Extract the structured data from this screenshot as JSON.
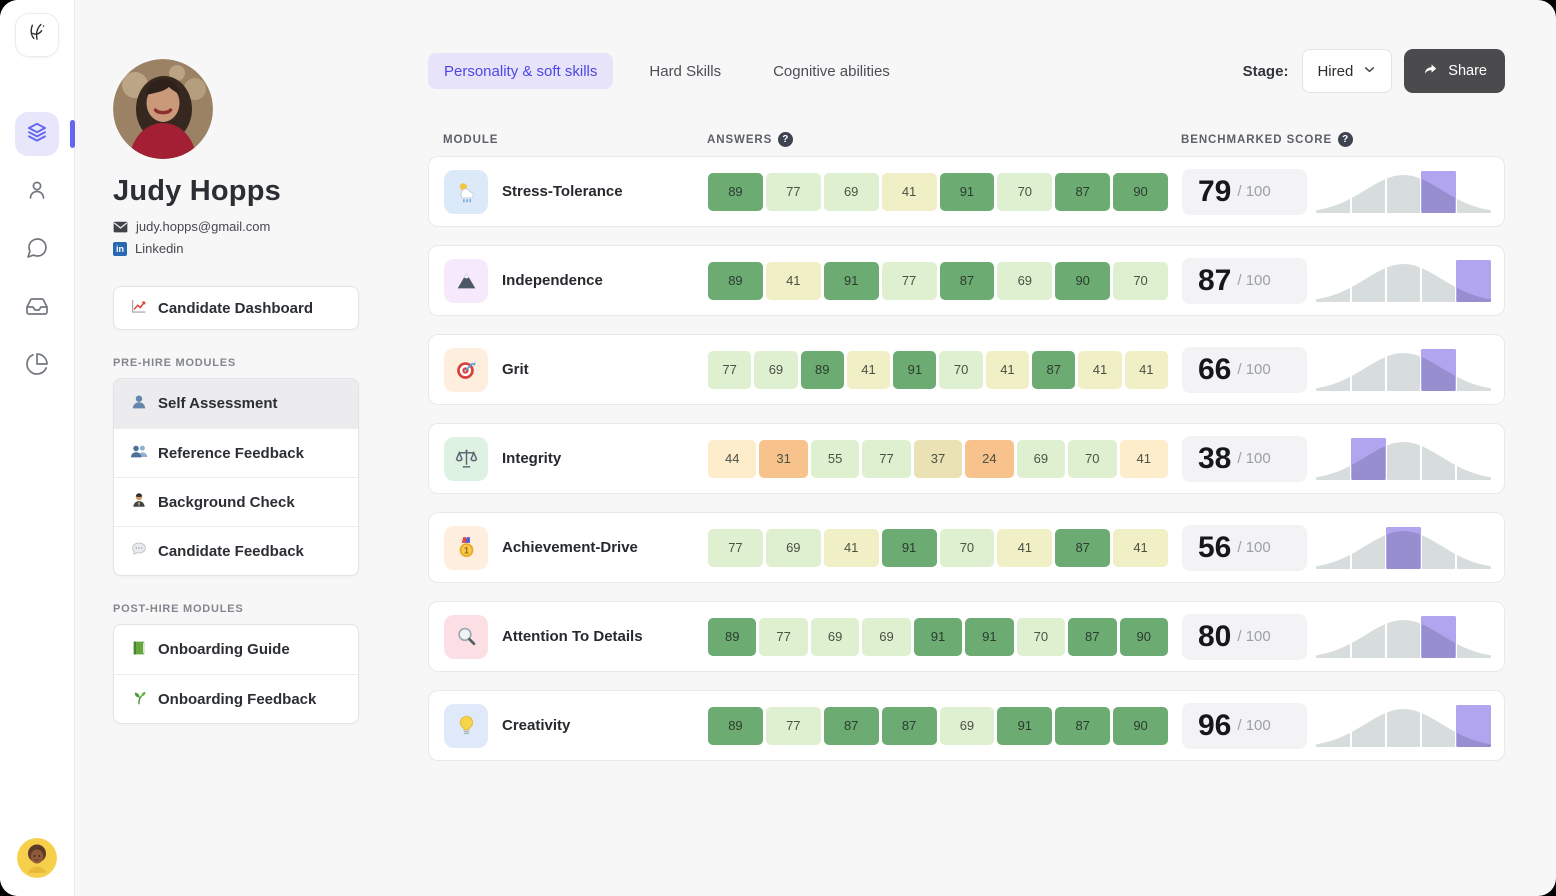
{
  "rail": {
    "items": [
      {
        "icon": "layers",
        "name": "modules",
        "active": true
      },
      {
        "icon": "user",
        "name": "candidates",
        "active": false
      },
      {
        "icon": "chat",
        "name": "messages",
        "active": false
      },
      {
        "icon": "inbox",
        "name": "inbox",
        "active": false
      },
      {
        "icon": "pie",
        "name": "reports",
        "active": false
      }
    ]
  },
  "profile": {
    "name": "Judy Hopps",
    "email": "judy.hopps@gmail.com",
    "linkedin_label": "Linkedin"
  },
  "nav": {
    "dashboard_label": "Candidate Dashboard",
    "dashboard_icon": "chart",
    "pre_hire_title": "PRE-HIRE MODULES",
    "pre_hire_items": [
      {
        "icon": "bust",
        "label": "Self Assessment",
        "active": true
      },
      {
        "icon": "busts",
        "label": "Reference Feedback",
        "active": false
      },
      {
        "icon": "worker",
        "label": "Background Check",
        "active": false
      },
      {
        "icon": "balloon",
        "label": "Candidate Feedback",
        "active": false
      }
    ],
    "post_hire_title": "POST-HIRE MODULES",
    "post_hire_items": [
      {
        "icon": "book",
        "label": "Onboarding Guide",
        "active": false
      },
      {
        "icon": "seedling",
        "label": "Onboarding Feedback",
        "active": false
      }
    ]
  },
  "header": {
    "tabs": [
      {
        "label": "Personality & soft skills",
        "active": true
      },
      {
        "label": "Hard Skills",
        "active": false
      },
      {
        "label": "Cognitive abilities",
        "active": false
      }
    ],
    "stage_label": "Stage:",
    "stage_value": "Hired",
    "share_label": "Share"
  },
  "table": {
    "col_module": "MODULE",
    "col_answers": "ANSWERS",
    "col_score": "BENCHMARKED SCORE",
    "help_glyph": "?",
    "score_suffix": "/ 100",
    "segments_total": 5,
    "rows": [
      {
        "icon": "weather",
        "icon_bg": "#dce9f9",
        "label": "Stress-Tolerance",
        "score": 79,
        "segment": 4,
        "answers": [
          {
            "v": 89,
            "c": "g2"
          },
          {
            "v": 77,
            "c": "g1"
          },
          {
            "v": 69,
            "c": "g1"
          },
          {
            "v": 41,
            "c": "y"
          },
          {
            "v": 91,
            "c": "g2"
          },
          {
            "v": 70,
            "c": "g1"
          },
          {
            "v": 87,
            "c": "g2"
          },
          {
            "v": 90,
            "c": "g2"
          }
        ]
      },
      {
        "icon": "mountain",
        "icon_bg": "#f5e9fb",
        "label": "Independence",
        "score": 87,
        "segment": 5,
        "answers": [
          {
            "v": 89,
            "c": "g2"
          },
          {
            "v": 41,
            "c": "y"
          },
          {
            "v": 91,
            "c": "g2"
          },
          {
            "v": 77,
            "c": "g1"
          },
          {
            "v": 87,
            "c": "g2"
          },
          {
            "v": 69,
            "c": "g1"
          },
          {
            "v": 90,
            "c": "g2"
          },
          {
            "v": 70,
            "c": "g1"
          }
        ]
      },
      {
        "icon": "target",
        "icon_bg": "#fdeedd",
        "label": "Grit",
        "score": 66,
        "segment": 4,
        "answers": [
          {
            "v": 77,
            "c": "g1"
          },
          {
            "v": 69,
            "c": "g1"
          },
          {
            "v": 89,
            "c": "g2"
          },
          {
            "v": 41,
            "c": "y"
          },
          {
            "v": 91,
            "c": "g2"
          },
          {
            "v": 70,
            "c": "g1"
          },
          {
            "v": 41,
            "c": "y"
          },
          {
            "v": 87,
            "c": "g2"
          },
          {
            "v": 41,
            "c": "y"
          },
          {
            "v": 41,
            "c": "y"
          }
        ]
      },
      {
        "icon": "scale",
        "icon_bg": "#def2e3",
        "label": "Integrity",
        "score": 38,
        "segment": 2,
        "answers": [
          {
            "v": 44,
            "c": "c"
          },
          {
            "v": 31,
            "c": "o"
          },
          {
            "v": 55,
            "c": "g1"
          },
          {
            "v": 77,
            "c": "g1"
          },
          {
            "v": 37,
            "c": "k"
          },
          {
            "v": 24,
            "c": "o"
          },
          {
            "v": 69,
            "c": "g1"
          },
          {
            "v": 70,
            "c": "g1"
          },
          {
            "v": 41,
            "c": "c"
          }
        ]
      },
      {
        "icon": "medal",
        "icon_bg": "#fdeedd",
        "label": "Achievement-Drive",
        "score": 56,
        "segment": 3,
        "answers": [
          {
            "v": 77,
            "c": "g1"
          },
          {
            "v": 69,
            "c": "g1"
          },
          {
            "v": 41,
            "c": "y"
          },
          {
            "v": 91,
            "c": "g2"
          },
          {
            "v": 70,
            "c": "g1"
          },
          {
            "v": 41,
            "c": "y"
          },
          {
            "v": 87,
            "c": "g2"
          },
          {
            "v": 41,
            "c": "y"
          }
        ]
      },
      {
        "icon": "magnifier",
        "icon_bg": "#fbdfe5",
        "label": "Attention To Details",
        "score": 80,
        "segment": 4,
        "answers": [
          {
            "v": 89,
            "c": "g2"
          },
          {
            "v": 77,
            "c": "g1"
          },
          {
            "v": 69,
            "c": "g1"
          },
          {
            "v": 69,
            "c": "g1"
          },
          {
            "v": 91,
            "c": "g2"
          },
          {
            "v": 91,
            "c": "g2"
          },
          {
            "v": 70,
            "c": "g1"
          },
          {
            "v": 87,
            "c": "g2"
          },
          {
            "v": 90,
            "c": "g2"
          }
        ]
      },
      {
        "icon": "bulb",
        "icon_bg": "#dfe9f9",
        "label": "Creativity",
        "score": 96,
        "segment": 5,
        "answers": [
          {
            "v": 89,
            "c": "g2"
          },
          {
            "v": 77,
            "c": "g1"
          },
          {
            "v": 87,
            "c": "g2"
          },
          {
            "v": 87,
            "c": "g2"
          },
          {
            "v": 69,
            "c": "g1"
          },
          {
            "v": 91,
            "c": "g2"
          },
          {
            "v": 87,
            "c": "g2"
          },
          {
            "v": 90,
            "c": "g2"
          }
        ]
      }
    ]
  },
  "palette": {
    "accent_indigo": "#4f46e5",
    "tab_active_bg": "#e7e4f9",
    "chip_green_dark": "#6cac72",
    "chip_green_light": "#dff0d0",
    "chip_yellow": "#f0efc6",
    "chip_cream": "#fdedca",
    "chip_orange": "#f7c28c",
    "chip_khaki": "#eae2b5",
    "bell_gray": "#d7dcdc",
    "bell_purple": "#b2a5ef",
    "share_btn_bg": "#4b4b4e"
  }
}
